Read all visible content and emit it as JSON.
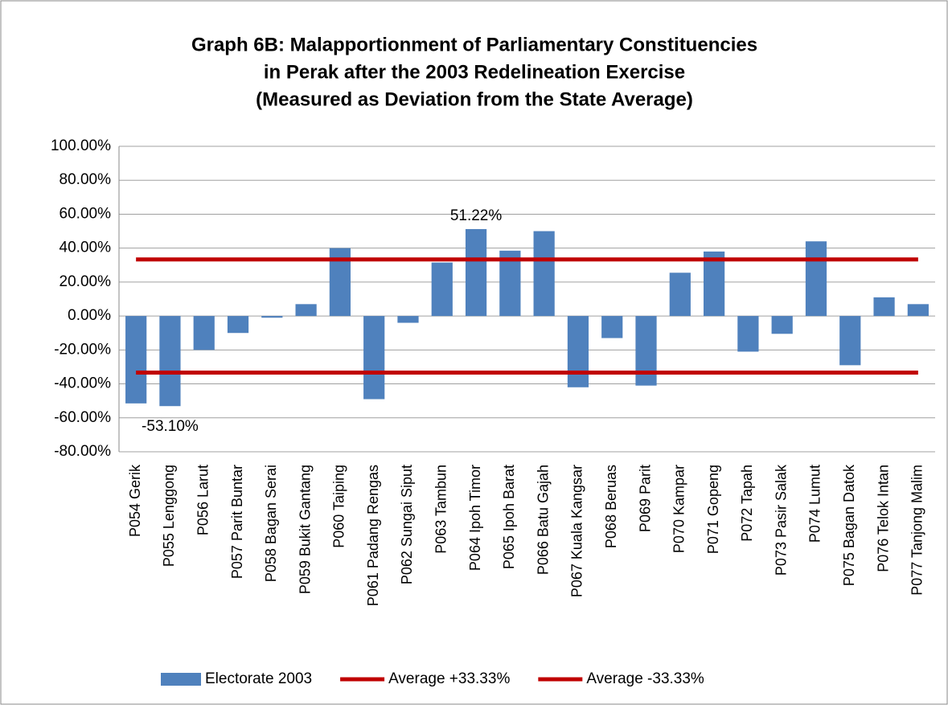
{
  "chart_data": {
    "type": "bar",
    "title": [
      "Graph 6B: Malapportionment of Parliamentary Constituencies",
      "in Perak after the 2003 Redelineation Exercise",
      "(Measured as Deviation from the State Average)"
    ],
    "categories": [
      "P054 Gerik",
      "P055 Lenggong",
      "P056 Larut",
      "P057 Parit Buntar",
      "P058 Bagan Serai",
      "P059 Bukit Gantang",
      "P060 Taiping",
      "P061 Padang Rengas",
      "P062 Sungai Siput",
      "P063 Tambun",
      "P064 Ipoh Timor",
      "P065 Ipoh Barat",
      "P066 Batu Gajah",
      "P067 Kuala Kangsar",
      "P068 Beruas",
      "P069 Parit",
      "P070 Kampar",
      "P071 Gopeng",
      "P072 Tapah",
      "P073 Pasir Salak",
      "P074 Lumut",
      "P075 Bagan Datok",
      "P076 Telok Intan",
      "P077 Tanjong Malim"
    ],
    "series": [
      {
        "name": "Electorate 2003",
        "type": "bar",
        "color": "#4f81bd",
        "values": [
          -51.5,
          -53.1,
          -20,
          -10,
          -1,
          7,
          40,
          -49,
          -4,
          31.5,
          51.22,
          38.5,
          50,
          -42,
          -13,
          -41,
          25.5,
          38,
          -21,
          -10.5,
          44,
          -29,
          11,
          7
        ],
        "value_labels": [
          null,
          "-53.10%",
          null,
          null,
          null,
          null,
          null,
          null,
          null,
          null,
          "51.22%",
          null,
          null,
          null,
          null,
          null,
          null,
          null,
          null,
          null,
          null,
          null,
          null,
          null
        ]
      },
      {
        "name": "Average +33.33%",
        "type": "line",
        "color": "#c00000",
        "values": [
          33.33,
          33.33,
          33.33,
          33.33,
          33.33,
          33.33,
          33.33,
          33.33,
          33.33,
          33.33,
          33.33,
          33.33,
          33.33,
          33.33,
          33.33,
          33.33,
          33.33,
          33.33,
          33.33,
          33.33,
          33.33,
          33.33,
          33.33,
          33.33
        ]
      },
      {
        "name": "Average -33.33%",
        "type": "line",
        "color": "#c00000",
        "values": [
          -33.33,
          -33.33,
          -33.33,
          -33.33,
          -33.33,
          -33.33,
          -33.33,
          -33.33,
          -33.33,
          -33.33,
          -33.33,
          -33.33,
          -33.33,
          -33.33,
          -33.33,
          -33.33,
          -33.33,
          -33.33,
          -33.33,
          -33.33,
          -33.33,
          -33.33,
          -33.33,
          -33.33
        ]
      }
    ],
    "ylim": [
      -80,
      100
    ],
    "yticks": [
      {
        "value": -80,
        "label": "-80.00%"
      },
      {
        "value": -60,
        "label": "-60.00%"
      },
      {
        "value": -40,
        "label": "-40.00%"
      },
      {
        "value": -20,
        "label": "-20.00%"
      },
      {
        "value": 0,
        "label": "0.00%"
      },
      {
        "value": 20,
        "label": "20.00%"
      },
      {
        "value": 40,
        "label": "40.00%"
      },
      {
        "value": 60,
        "label": "60.00%"
      },
      {
        "value": 80,
        "label": "80.00%"
      },
      {
        "value": 100,
        "label": "100.00%"
      }
    ],
    "grid": true,
    "legend": "bottom"
  }
}
